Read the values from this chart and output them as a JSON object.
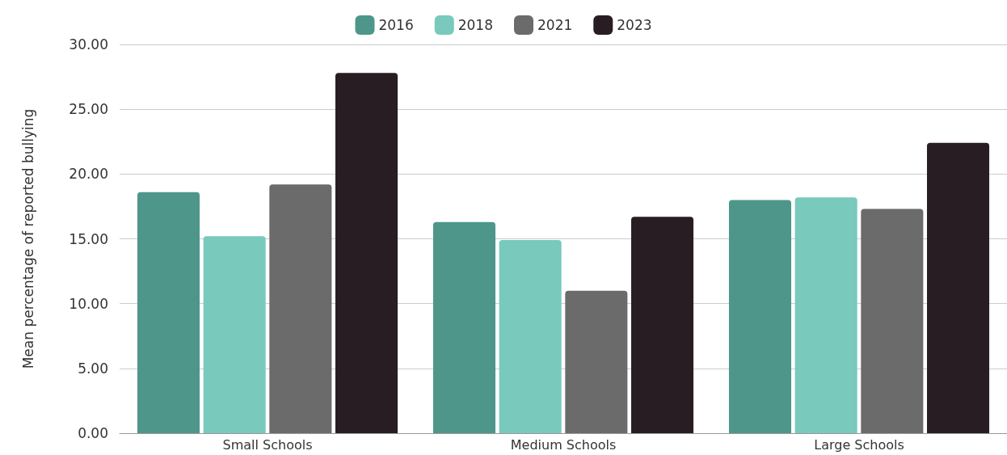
{
  "chart_data": {
    "type": "bar",
    "ylabel": "Mean percentage of reported bullying",
    "categories": [
      "Small Schools",
      "Medium Schools",
      "Large Schools"
    ],
    "series": [
      {
        "name": "2016",
        "color": "#4e968a",
        "values": [
          18.6,
          16.3,
          18.0
        ]
      },
      {
        "name": "2018",
        "color": "#79c9bd",
        "values": [
          15.2,
          14.9,
          18.2
        ]
      },
      {
        "name": "2021",
        "color": "#6b6b6b",
        "values": [
          19.2,
          11.0,
          17.3
        ]
      },
      {
        "name": "2023",
        "color": "#281d22",
        "values": [
          27.8,
          16.7,
          22.4
        ]
      }
    ],
    "ylim": [
      0,
      30
    ],
    "yticks": [
      {
        "value": 0,
        "label": "0.00"
      },
      {
        "value": 5,
        "label": "5.00"
      },
      {
        "value": 10,
        "label": "10.00"
      },
      {
        "value": 15,
        "label": "15.00"
      },
      {
        "value": 20,
        "label": "20.00"
      },
      {
        "value": 25,
        "label": "25.00"
      },
      {
        "value": 30,
        "label": "30.00"
      }
    ],
    "grid": "y",
    "legend": "top"
  }
}
